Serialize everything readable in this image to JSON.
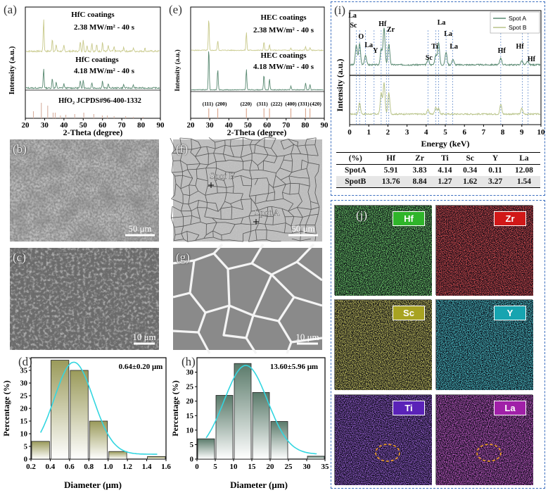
{
  "panel_a": {
    "tag": "(a)",
    "line1_label1": "HfC coatings",
    "line1_label2": "2.38 MW/m² - 40 s",
    "line2_label1": "HfC coatings",
    "line2_label2": "4.18 MW/m² - 40 s",
    "ref_label": "HfO₂ JCPDS#96-400-1332",
    "xlabel": "2-Theta (degree)",
    "ylabel": "Intensity (a.u.)",
    "xticks": [
      "20",
      "30",
      "40",
      "50",
      "60",
      "70",
      "80",
      "90"
    ],
    "colors": {
      "top": "#c8c98a",
      "mid": "#5a8a72",
      "ref": "#d8b0a0"
    }
  },
  "panel_e": {
    "tag": "(e)",
    "line1_label1": "HEC coatings",
    "line1_label2": "2.38 MW/m² - 40 s",
    "line2_label1": "HEC coatings",
    "line2_label2": "4.18 MW/m² - 40 s",
    "xlabel": "2-Theta (degree)",
    "ylabel": "Intensity (a.u.)",
    "xticks": [
      "20",
      "30",
      "40",
      "50",
      "60",
      "70",
      "80",
      "90"
    ],
    "hkl": [
      "(111)",
      "(200)",
      "(220)",
      "(311)",
      "(222)",
      "(400)",
      "(331)",
      "(420)"
    ],
    "colors": {
      "top": "#c8c98a",
      "mid": "#5a8a72",
      "ref": "#d8a38a"
    }
  },
  "panel_i": {
    "tag": "(i)",
    "legend": [
      "Spot A",
      "Spot B"
    ],
    "xlabel": "Energy (keV)",
    "ylabel": "Intensity (a.u.)",
    "xticks": [
      "0",
      "1",
      "2",
      "3",
      "4",
      "5",
      "6",
      "7",
      "8",
      "9",
      "10"
    ],
    "peak_labels": [
      "La",
      "Sc",
      "O",
      "La",
      "Y",
      "Hf",
      "Zr",
      "Sc",
      "Ti",
      "La",
      "La",
      "La",
      "Hf",
      "Hf",
      "Hf"
    ],
    "colors": {
      "spot_a": "#5a8a72",
      "spot_b": "#b9c48a"
    }
  },
  "eds_table": {
    "headers": [
      "(%)",
      "Hf",
      "Zr",
      "Ti",
      "Sc",
      "Y",
      "La"
    ],
    "rows": [
      [
        "SpotA",
        "5.91",
        "3.83",
        "4.14",
        "0.34",
        "0.11",
        "12.08"
      ],
      [
        "SpotB",
        "13.76",
        "8.84",
        "1.27",
        "1.62",
        "3.27",
        "1.54"
      ]
    ]
  },
  "sem": {
    "b": {
      "tag": "(b)",
      "scale": "50 μm"
    },
    "c": {
      "tag": "(c)",
      "scale": "10 μm"
    },
    "f": {
      "tag": "(f)",
      "scale": "50 μm",
      "spot_b": "Spot B",
      "spot_a": "Spot A"
    },
    "g": {
      "tag": "(g)",
      "scale": "10 μm"
    }
  },
  "panel_j": {
    "tag": "(j)",
    "maps": [
      {
        "label": "Hf",
        "color": "#2fb52a"
      },
      {
        "label": "Zr",
        "color": "#d11818"
      },
      {
        "label": "Sc",
        "color": "#a8a321"
      },
      {
        "label": "Y",
        "color": "#17a4b0"
      },
      {
        "label": "Ti",
        "color": "#5a22b8"
      },
      {
        "label": "La",
        "color": "#a020a8"
      }
    ]
  },
  "chart_data": [
    {
      "type": "bar",
      "tag": "(d)",
      "annotation": "0.64±0.20 μm",
      "xlabel": "Diameter (μm)",
      "ylabel": "Percentage (%)",
      "bin_left": [
        0.2,
        0.4,
        0.6,
        0.8,
        1.0,
        1.2,
        1.4
      ],
      "bin_width": 0.2,
      "values": [
        7,
        39,
        35,
        15,
        3,
        0,
        1
      ],
      "xlim": [
        0.2,
        1.6
      ],
      "ylim": [
        0,
        40
      ],
      "xticks": [
        "0.2",
        "0.4",
        "0.6",
        "0.8",
        "1.0",
        "1.2",
        "1.4",
        "1.6"
      ],
      "yticks": [
        "0",
        "5",
        "10",
        "15",
        "20",
        "25",
        "30",
        "35"
      ],
      "fit_color": "#33d6e0",
      "bar_color": "#9a9a5a"
    },
    {
      "type": "bar",
      "tag": "(h)",
      "annotation": "13.60±5.96 μm",
      "xlabel": "Diameter (μm)",
      "ylabel": "Percentage (%)",
      "bin_left": [
        0,
        5,
        10,
        15,
        20,
        25,
        30
      ],
      "bin_width": 5,
      "values": [
        7,
        22,
        33,
        23,
        13,
        0,
        1
      ],
      "xlim": [
        0,
        35
      ],
      "ylim": [
        0,
        35
      ],
      "xticks": [
        "0",
        "5",
        "10",
        "15",
        "20",
        "25",
        "30",
        "35"
      ],
      "yticks": [
        "0",
        "5",
        "10",
        "15",
        "20",
        "25",
        "30"
      ],
      "fit_color": "#33d6e0",
      "bar_color": "#5a7a6a"
    }
  ]
}
